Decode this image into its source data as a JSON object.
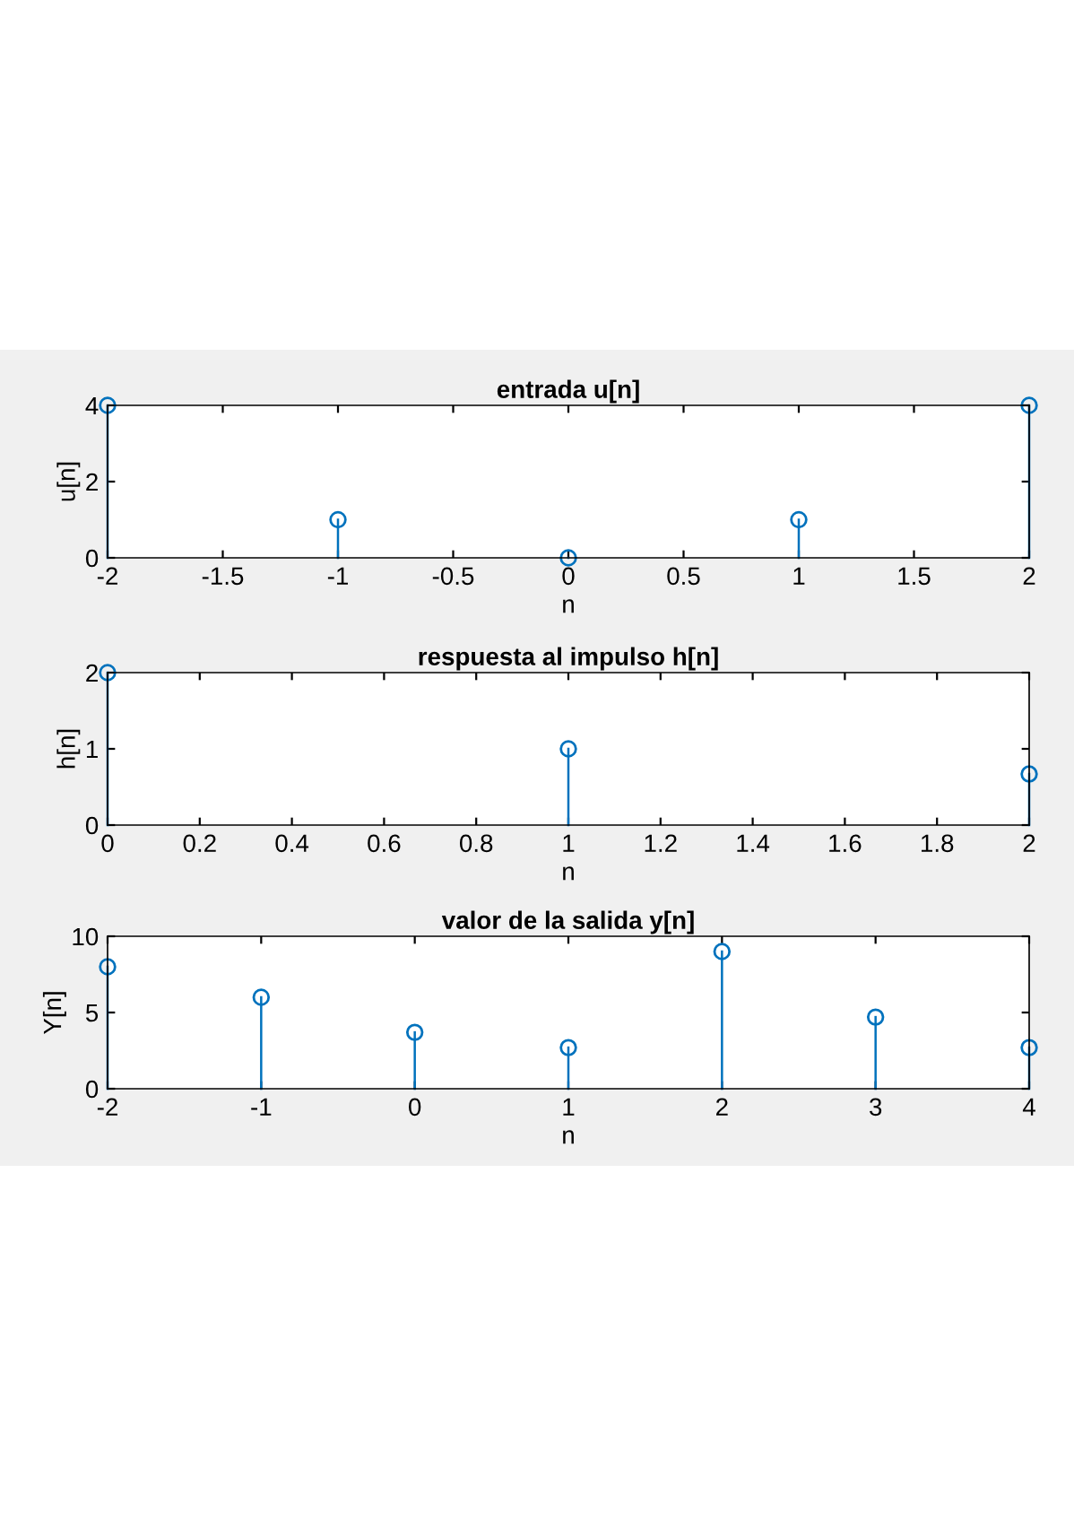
{
  "chart_data": [
    {
      "type": "lollipop",
      "title": "entrada u[n]",
      "xlabel": "n",
      "ylabel": "u[n]",
      "x": [
        -2,
        -1,
        0,
        1,
        2
      ],
      "series": [
        {
          "color": "#0072bd",
          "values": [
            4,
            1,
            0,
            1,
            4
          ]
        }
      ],
      "xlim": [
        -2,
        2
      ],
      "xticks": [
        -2,
        -1.5,
        -1,
        -0.5,
        0,
        0.5,
        1,
        1.5,
        2
      ],
      "ylim": [
        0,
        4
      ],
      "yticks": [
        0,
        2,
        4
      ],
      "marker": "circle"
    },
    {
      "type": "lollipop",
      "title": "respuesta al impulso h[n]",
      "xlabel": "n",
      "ylabel": "h[n]",
      "x": [
        0,
        1,
        2
      ],
      "series": [
        {
          "color": "#0072bd",
          "values": [
            2,
            1,
            0.67
          ]
        }
      ],
      "xlim": [
        0,
        2
      ],
      "xticks": [
        0,
        0.2,
        0.4,
        0.6,
        0.8,
        1,
        1.2,
        1.4,
        1.6,
        1.8,
        2
      ],
      "ylim": [
        0,
        2
      ],
      "yticks": [
        0,
        1,
        2
      ],
      "marker": "circle"
    },
    {
      "type": "lollipop",
      "title": "valor de la salida y[n]",
      "xlabel": "n",
      "ylabel": "Y[n]",
      "x": [
        -2,
        -1,
        0,
        1,
        2,
        3,
        4
      ],
      "series": [
        {
          "color": "#0072bd",
          "values": [
            8,
            6,
            3.7,
            2.7,
            9,
            4.7,
            2.7
          ]
        }
      ],
      "xlim": [
        -2,
        4
      ],
      "xticks": [
        -2,
        -1,
        0,
        1,
        2,
        3,
        4
      ],
      "ylim": [
        0,
        10
      ],
      "yticks": [
        0,
        5,
        10
      ],
      "marker": "circle"
    }
  ]
}
